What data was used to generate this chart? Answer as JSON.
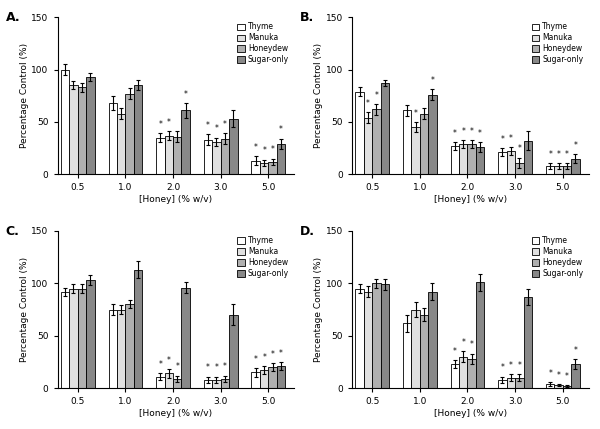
{
  "panels": [
    "A",
    "B",
    "C",
    "D"
  ],
  "concentrations": [
    "0.5",
    "1.0",
    "2.0",
    "3.0",
    "5.0"
  ],
  "bar_colors": [
    "#ffffff",
    "#e0e0e0",
    "#b0b0b0",
    "#888888"
  ],
  "bar_edgecolor": "black",
  "legend_labels": [
    "Thyme",
    "Manuka",
    "Honeydew",
    "Sugar-only"
  ],
  "ylabel": "Percentage Control (%)",
  "xlabel": "[Honey] (% w/v)",
  "ylim": [
    0,
    150
  ],
  "yticks": [
    0,
    50,
    100,
    150
  ],
  "A": {
    "values": [
      [
        100,
        85,
        83,
        93
      ],
      [
        68,
        58,
        77,
        85
      ],
      [
        35,
        37,
        36,
        61
      ],
      [
        33,
        31,
        34,
        53
      ],
      [
        13,
        11,
        12,
        29
      ]
    ],
    "errors": [
      [
        5,
        4,
        4,
        4
      ],
      [
        7,
        5,
        5,
        5
      ],
      [
        4,
        4,
        5,
        7
      ],
      [
        5,
        4,
        5,
        8
      ],
      [
        4,
        3,
        3,
        5
      ]
    ],
    "stars": [
      [
        false,
        false,
        false,
        false
      ],
      [
        false,
        false,
        false,
        false
      ],
      [
        true,
        true,
        false,
        true
      ],
      [
        true,
        true,
        true,
        false
      ],
      [
        true,
        true,
        true,
        true
      ]
    ]
  },
  "B": {
    "values": [
      [
        79,
        54,
        62,
        87
      ],
      [
        61,
        45,
        58,
        76
      ],
      [
        27,
        29,
        29,
        26
      ],
      [
        21,
        22,
        11,
        32
      ],
      [
        8,
        8,
        8,
        15
      ]
    ],
    "errors": [
      [
        4,
        5,
        5,
        3
      ],
      [
        5,
        5,
        5,
        5
      ],
      [
        4,
        4,
        4,
        5
      ],
      [
        4,
        4,
        5,
        9
      ],
      [
        3,
        3,
        3,
        4
      ]
    ],
    "stars": [
      [
        false,
        true,
        true,
        false
      ],
      [
        false,
        true,
        false,
        true
      ],
      [
        true,
        true,
        true,
        true
      ],
      [
        true,
        true,
        true,
        false
      ],
      [
        true,
        true,
        true,
        true
      ]
    ]
  },
  "C": {
    "values": [
      [
        92,
        95,
        95,
        103
      ],
      [
        75,
        75,
        80,
        113
      ],
      [
        11,
        14,
        9,
        96
      ],
      [
        8,
        8,
        9,
        70
      ],
      [
        15,
        17,
        20,
        21
      ]
    ],
    "errors": [
      [
        4,
        4,
        4,
        5
      ],
      [
        5,
        4,
        4,
        8
      ],
      [
        3,
        4,
        3,
        5
      ],
      [
        3,
        3,
        3,
        10
      ],
      [
        4,
        4,
        4,
        4
      ]
    ],
    "stars": [
      [
        false,
        false,
        false,
        false
      ],
      [
        false,
        false,
        false,
        false
      ],
      [
        true,
        true,
        true,
        false
      ],
      [
        true,
        true,
        true,
        false
      ],
      [
        true,
        true,
        true,
        true
      ]
    ]
  },
  "D": {
    "values": [
      [
        95,
        92,
        100,
        99
      ],
      [
        62,
        75,
        70,
        92
      ],
      [
        23,
        30,
        28,
        101
      ],
      [
        8,
        10,
        10,
        87
      ],
      [
        4,
        3,
        2,
        23
      ]
    ],
    "errors": [
      [
        4,
        5,
        4,
        5
      ],
      [
        8,
        7,
        6,
        8
      ],
      [
        4,
        5,
        5,
        8
      ],
      [
        3,
        3,
        3,
        8
      ],
      [
        2,
        1,
        1,
        5
      ]
    ],
    "stars": [
      [
        false,
        false,
        false,
        false
      ],
      [
        false,
        false,
        false,
        false
      ],
      [
        true,
        true,
        true,
        false
      ],
      [
        true,
        true,
        true,
        false
      ],
      [
        true,
        true,
        true,
        true
      ]
    ]
  }
}
